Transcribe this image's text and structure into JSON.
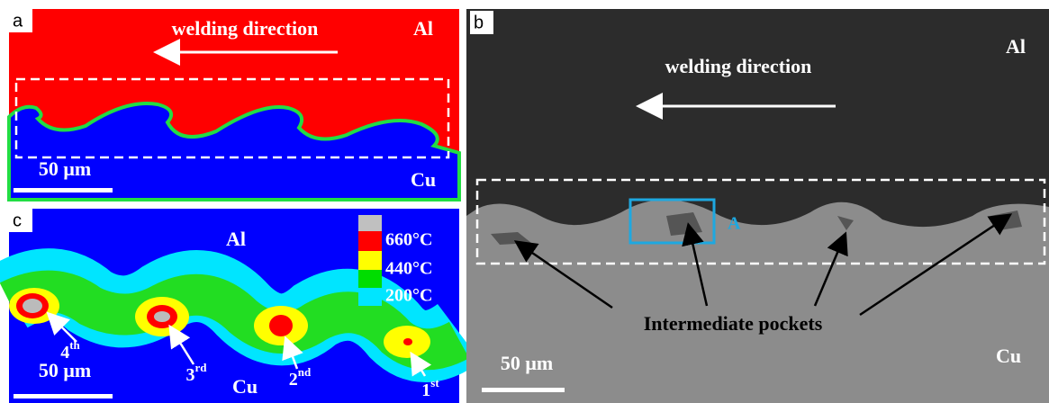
{
  "panels": {
    "a": {
      "label": "a",
      "direction": "welding direction",
      "top_material": "Al",
      "bottom_material": "Cu",
      "scale": "50 μm"
    },
    "b": {
      "label": "b",
      "direction": "welding direction",
      "top_material": "Al",
      "bottom_material": "Cu",
      "scale": "50 μm",
      "region": "A",
      "callout": "Intermediate pockets"
    },
    "c": {
      "label": "c",
      "top_material": "Al",
      "bottom_material": "Cu",
      "scale": "50 μm",
      "legend": [
        "660°C",
        "440°C",
        "200°C"
      ],
      "pockets": [
        {
          "number": "4",
          "suffix": "th"
        },
        {
          "number": "3",
          "suffix": "rd"
        },
        {
          "number": "2",
          "suffix": "nd"
        },
        {
          "number": "1",
          "suffix": "st"
        }
      ]
    }
  }
}
